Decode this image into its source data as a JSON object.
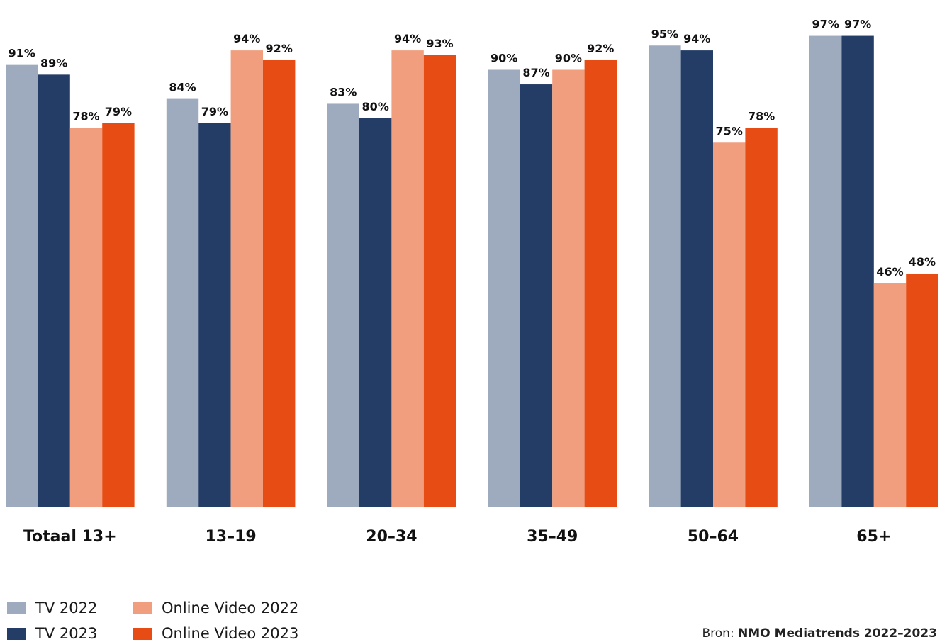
{
  "chart_data": {
    "type": "bar",
    "categories": [
      "Totaal 13+",
      "13–19",
      "20–34",
      "35–49",
      "50–64",
      "65+"
    ],
    "series": [
      {
        "name": "TV 2022",
        "color": "#9eaabd",
        "values": [
          91,
          84,
          83,
          90,
          95,
          97
        ]
      },
      {
        "name": "TV 2023",
        "color": "#233d66",
        "values": [
          89,
          79,
          80,
          87,
          94,
          97
        ]
      },
      {
        "name": "Online Video 2022",
        "color": "#f19e7e",
        "values": [
          78,
          94,
          94,
          90,
          75,
          46
        ]
      },
      {
        "name": "Online Video 2023",
        "color": "#e64c13",
        "values": [
          79,
          92,
          93,
          92,
          78,
          48
        ]
      }
    ],
    "value_suffix": "%",
    "ylim": [
      0,
      100
    ],
    "grid": false,
    "legend_position": "bottom-left"
  },
  "source": {
    "label": "Bron:",
    "text": "NMO Mediatrends 2022–2023"
  }
}
